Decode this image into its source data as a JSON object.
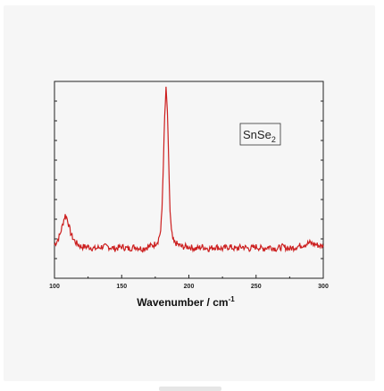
{
  "chart_data": {
    "type": "line",
    "title": "",
    "xlabel_main": "Wavenumber / cm",
    "xlabel_sup": "-1",
    "ylabel": "",
    "xlim": [
      100,
      300
    ],
    "ylim": [
      0,
      100
    ],
    "xticks": [
      100,
      150,
      200,
      250,
      300
    ],
    "grid": false,
    "legend": {
      "position": "top-right",
      "text_main": "SnSe",
      "text_sub": "2"
    },
    "series": [
      {
        "color": "#cc1f1f",
        "x": [
          100,
          102,
          104,
          106,
          107,
          108,
          109,
          110,
          111,
          112,
          114,
          116,
          118,
          120,
          125,
          130,
          135,
          140,
          145,
          150,
          155,
          160,
          165,
          170,
          174,
          177,
          179,
          180,
          181,
          182,
          183,
          184,
          185,
          186,
          187,
          188,
          189,
          190,
          192,
          195,
          200,
          205,
          210,
          215,
          220,
          225,
          230,
          235,
          240,
          245,
          250,
          255,
          260,
          265,
          270,
          275,
          280,
          285,
          290,
          295,
          300
        ],
        "y": [
          17,
          19,
          22,
          27,
          30,
          32,
          31,
          29,
          26,
          23,
          20,
          18,
          17,
          16,
          16,
          15,
          16,
          16,
          15,
          16,
          15,
          16,
          15,
          16,
          17,
          19,
          24,
          35,
          58,
          82,
          96,
          85,
          58,
          34,
          24,
          20,
          18,
          18,
          17,
          16,
          16,
          15,
          16,
          15,
          16,
          15,
          16,
          15,
          16,
          15,
          16,
          15,
          16,
          15,
          16,
          15,
          16,
          17,
          18,
          17,
          16
        ]
      }
    ]
  }
}
